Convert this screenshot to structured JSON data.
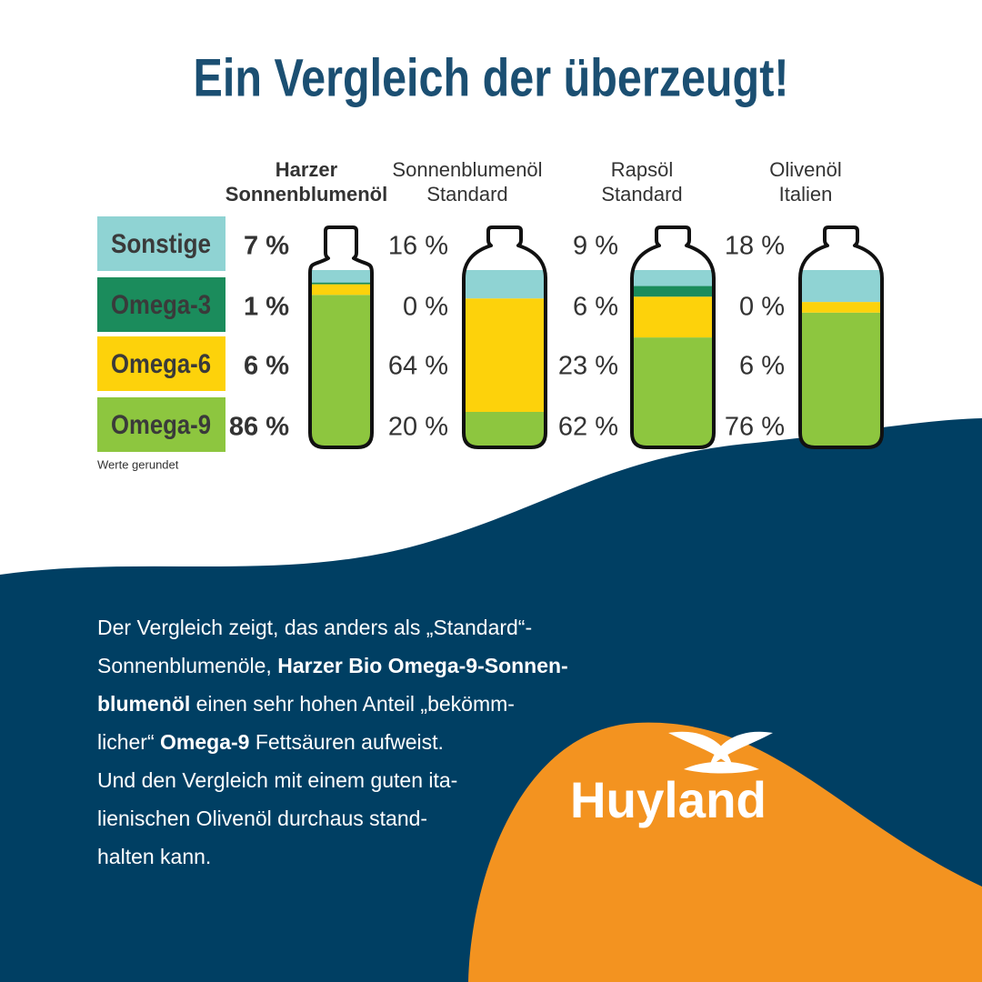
{
  "chart_data": {
    "type": "bottle",
    "title": "Ein Vergleich der überzeugt!",
    "categories": [
      "Harzer\nSonnenblumenöl",
      "Sonnenblumenöl\nStandard",
      "Rapsöl\nStandard",
      "Olivenöl\nItalien"
    ],
    "series": [
      {
        "name": "Sonstige",
        "color": "#8fd3d3",
        "values": [
          7,
          16,
          9,
          18
        ],
        "value_labels": [
          "7 %",
          "16 %",
          "9 %",
          "18 %"
        ]
      },
      {
        "name": "Omega-3",
        "color": "#1b8c5c",
        "values": [
          1,
          0,
          6,
          0
        ],
        "value_labels": [
          "1 %",
          "0 %",
          "6 %",
          "0 %"
        ]
      },
      {
        "name": "Omega-6",
        "color": "#fdd20b",
        "values": [
          6,
          64,
          23,
          6
        ],
        "value_labels": [
          "6 %",
          "64 %",
          "23 %",
          "6 %"
        ]
      },
      {
        "name": "Omega-9",
        "color": "#8dc63f",
        "values": [
          86,
          20,
          62,
          76
        ],
        "value_labels": [
          "86 %",
          "20 %",
          "62 %",
          "76 %"
        ]
      }
    ],
    "annotation": "Werte gerundet"
  },
  "paragraph": [
    [
      {
        "text": "Der Vergleich zeigt, das anders als „Standard“-"
      }
    ],
    [
      {
        "text": "Sonnenblumenöle, "
      },
      {
        "text": "Harzer Bio Omega-9-Sonnen-",
        "bold": true
      }
    ],
    [
      {
        "text": "blumenöl",
        "bold": true
      },
      {
        "text": " einen sehr hohen Anteil „bekömm-"
      }
    ],
    [
      {
        "text": "licher“ "
      },
      {
        "text": "Omega-9",
        "bold": true
      },
      {
        "text": " Fettsäuren aufweist."
      }
    ],
    [
      {
        "text": "Und den Vergleich mit einem guten ita-"
      }
    ],
    [
      {
        "text": "lienischen Olivenöl durchaus stand-"
      }
    ],
    [
      {
        "text": "halten kann."
      }
    ]
  ],
  "logo": "Huyland"
}
